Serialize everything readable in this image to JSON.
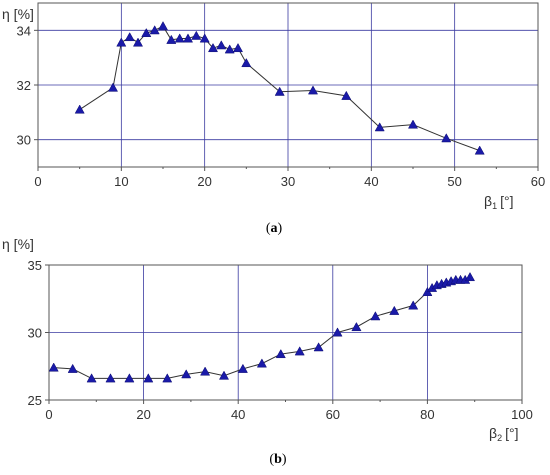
{
  "chart_data": [
    {
      "type": "scatter",
      "caption_letter": "a",
      "ylabel": "η [%]",
      "xlabel_symbol": "β",
      "xlabel_subscript": "1",
      "xlabel_unit": "[°]",
      "xlim": [
        0,
        60
      ],
      "ylim": [
        29,
        35
      ],
      "xticks": [
        0,
        10,
        20,
        30,
        40,
        50,
        60
      ],
      "yticks": [
        30,
        32,
        34
      ],
      "grid": true,
      "marker": "triangle",
      "color": "#1a1aa8",
      "line_color": "#333333",
      "series": [
        {
          "x": [
            5,
            9,
            10,
            11,
            12,
            13,
            14,
            15,
            16,
            17,
            18,
            19,
            20,
            21,
            22,
            23,
            24,
            25,
            29,
            33,
            37,
            41,
            45,
            49,
            53
          ],
          "y": [
            31.1,
            31.9,
            33.55,
            33.75,
            33.55,
            33.9,
            34.0,
            34.15,
            33.65,
            33.7,
            33.7,
            33.8,
            33.7,
            33.35,
            33.45,
            33.3,
            33.35,
            32.8,
            31.75,
            31.8,
            31.6,
            30.45,
            30.55,
            30.05,
            29.6
          ]
        }
      ]
    },
    {
      "type": "scatter",
      "caption_letter": "b",
      "ylabel": "η [%]",
      "xlabel_symbol": "β",
      "xlabel_subscript": "2",
      "xlabel_unit": "[°]",
      "xlim": [
        0,
        100
      ],
      "ylim": [
        25,
        35
      ],
      "xticks": [
        0,
        20,
        40,
        60,
        80,
        100
      ],
      "yticks": [
        25,
        30,
        35
      ],
      "grid": true,
      "marker": "triangle",
      "color": "#1a1aa8",
      "line_color": "#333333",
      "series": [
        {
          "x": [
            1,
            5,
            9,
            13,
            17,
            21,
            25,
            29,
            33,
            37,
            41,
            45,
            49,
            53,
            57,
            61,
            65,
            69,
            73,
            77,
            80,
            81,
            82,
            83,
            84,
            85,
            86,
            87,
            88,
            89
          ],
          "y": [
            27.4,
            27.3,
            26.6,
            26.6,
            26.6,
            26.6,
            26.6,
            26.9,
            27.1,
            26.8,
            27.3,
            27.7,
            28.4,
            28.6,
            28.9,
            30.0,
            30.4,
            31.2,
            31.6,
            32.0,
            33.0,
            33.3,
            33.5,
            33.6,
            33.7,
            33.8,
            33.9,
            33.9,
            33.9,
            34.1
          ]
        }
      ]
    }
  ]
}
